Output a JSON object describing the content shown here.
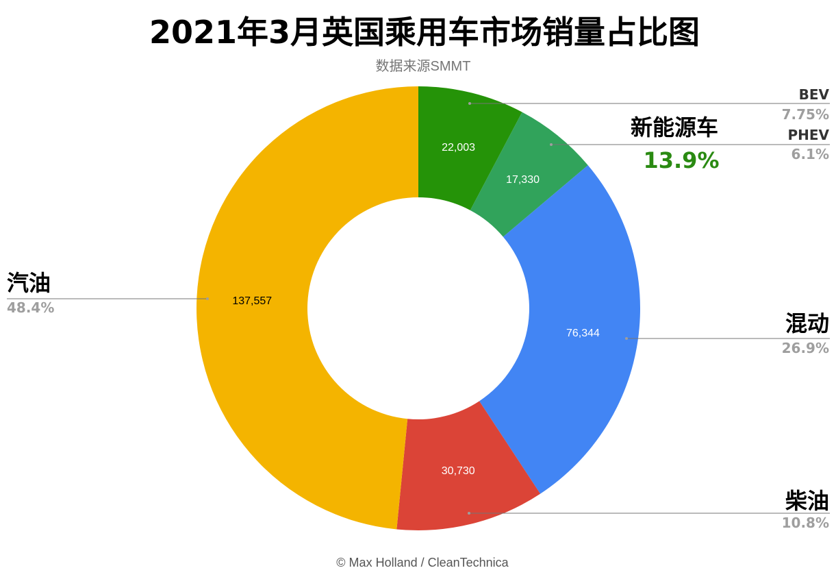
{
  "colors": {
    "bev": "#259308",
    "phev": "#31a35b",
    "hybrid": "#4285f4",
    "diesel": "#db4437",
    "petrol": "#f4b400",
    "nev_pct": "#2a8a12"
  },
  "chart_data": {
    "type": "pie",
    "style": "donut",
    "title": "2021年3月英国乘用车市场销量占比图",
    "subtitle": "数据来源SMMT",
    "credit": "© Max Holland / CleanTechnica",
    "slices": [
      {
        "key": "bev",
        "label": "BEV",
        "value": 22003,
        "value_label": "22,003",
        "percent_label": "7.75%"
      },
      {
        "key": "phev",
        "label": "PHEV",
        "value": 17330,
        "value_label": "17,330",
        "percent_label": "6.1%"
      },
      {
        "key": "hybrid",
        "label": "混动",
        "value": 76344,
        "value_label": "76,344",
        "percent_label": "26.9%"
      },
      {
        "key": "diesel",
        "label": "柴油",
        "value": 30730,
        "value_label": "30,730",
        "percent_label": "10.8%"
      },
      {
        "key": "petrol",
        "label": "汽油",
        "value": 137557,
        "value_label": "137,557",
        "percent_label": "48.4%"
      }
    ],
    "group_annotation": {
      "label": "新能源车",
      "percent_label": "13.9%"
    }
  }
}
